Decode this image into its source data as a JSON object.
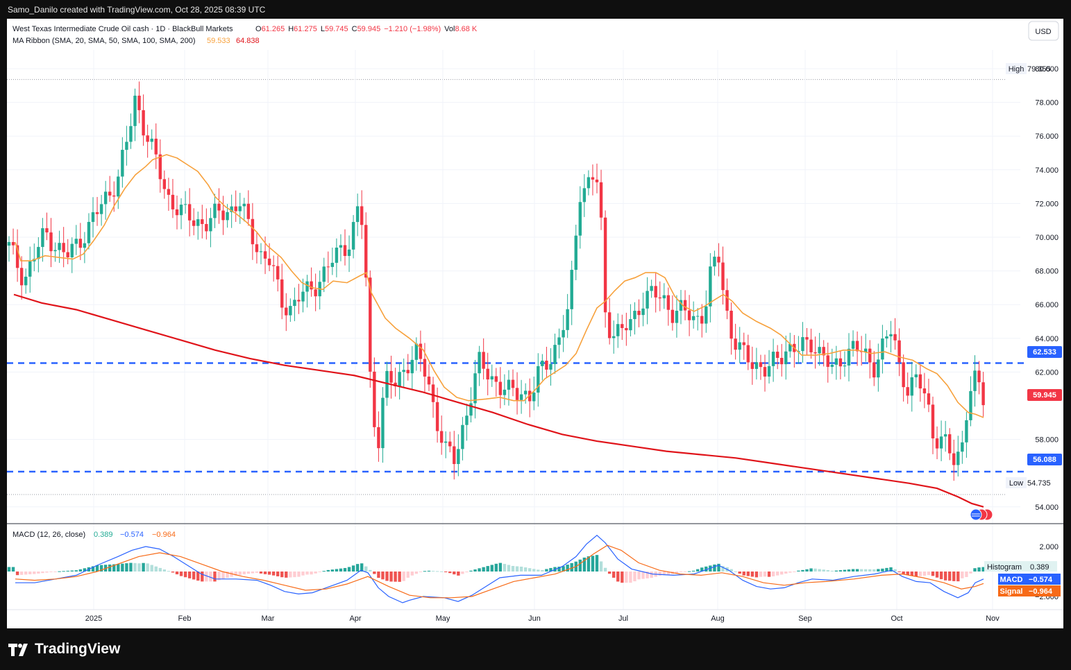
{
  "attribution": "Samo_Danilo created with TradingView.com, Oct 28, 2025 08:39 UTC",
  "brand": {
    "name": "TradingView",
    "icon": "tradingview-logo-icon"
  },
  "legend": {
    "symbol": "West Texas Intermediate Crude Oil cash · 1D · BlackBull Markets",
    "ohlc": [
      {
        "k": "O",
        "v": "61.265"
      },
      {
        "k": "H",
        "v": "61.275"
      },
      {
        "k": "L",
        "v": "59.745"
      },
      {
        "k": "C",
        "v": "59.945"
      }
    ],
    "change": "−1.210 (−1.98%)",
    "vol_label": "Vol",
    "vol_value": "8.68 K",
    "ma_label": "MA Ribbon (SMA, 20, SMA, 50, SMA, 100, SMA, 200)",
    "ma_values": [
      "59.533",
      "64.838"
    ],
    "macd_label": "MACD (12, 26, close)",
    "macd_values": [
      "0.389",
      "−0.574",
      "−0.964"
    ]
  },
  "currency": "USD",
  "colors": {
    "up": "#22ab94",
    "down": "#f23645",
    "sma20": "#f7a13c",
    "sma200": "#e0141a",
    "level": "#2962ff",
    "macd": "#2962ff",
    "signal": "#f76a17",
    "hist_pos": "#26a69a",
    "hist_neg": "#ef5350"
  },
  "chart_data": [
    {
      "type": "candlestick",
      "title": "West Texas Intermediate Crude Oil cash · 1D · BlackBull Markets",
      "x_ticks": [
        "2025",
        "Feb",
        "Mar",
        "Apr",
        "May",
        "Jun",
        "Jul",
        "Aug",
        "Sep",
        "Oct",
        "Nov"
      ],
      "y_ticks": [
        "80.000",
        "78.000",
        "76.000",
        "74.000",
        "72.000",
        "70.000",
        "68.000",
        "66.000",
        "64.000",
        "62.000",
        "58.000",
        "54.000"
      ],
      "ylim": [
        53.0,
        81.0
      ],
      "high": {
        "label": "High",
        "value": "79.355"
      },
      "low": {
        "label": "Low",
        "value": "54.735"
      },
      "last_price": "59.945",
      "levels": [
        "62.533",
        "56.088"
      ],
      "series": [
        {
          "name": "SMA 20",
          "points": [
            [
              12,
              69.7
            ],
            [
              20,
              68.6
            ],
            [
              35,
              68.6
            ],
            [
              55,
              68.9
            ],
            [
              75,
              68.8
            ],
            [
              95,
              68.7
            ],
            [
              110,
              69.0
            ],
            [
              125,
              69.8
            ],
            [
              140,
              70.7
            ],
            [
              155,
              71.9
            ],
            [
              170,
              72.9
            ],
            [
              185,
              73.7
            ],
            [
              200,
              74.2
            ],
            [
              210,
              74.6
            ],
            [
              230,
              74.9
            ],
            [
              245,
              74.7
            ],
            [
              260,
              74.3
            ],
            [
              275,
              73.9
            ],
            [
              290,
              73.1
            ],
            [
              300,
              72.4
            ],
            [
              315,
              71.8
            ],
            [
              330,
              71.4
            ],
            [
              345,
              70.9
            ],
            [
              360,
              70.3
            ],
            [
              375,
              69.5
            ],
            [
              395,
              68.8
            ],
            [
              410,
              68.0
            ],
            [
              425,
              67.3
            ],
            [
              440,
              67.0
            ],
            [
              455,
              66.9
            ],
            [
              470,
              67.4
            ],
            [
              490,
              67.3
            ],
            [
              508,
              67.7
            ],
            [
              518,
              67.9
            ],
            [
              525,
              66.7
            ],
            [
              545,
              65.2
            ],
            [
              560,
              64.6
            ],
            [
              580,
              64.0
            ],
            [
              600,
              63.3
            ],
            [
              615,
              62.1
            ],
            [
              630,
              61.1
            ],
            [
              648,
              60.5
            ],
            [
              665,
              60.3
            ],
            [
              690,
              60.4
            ],
            [
              710,
              60.5
            ],
            [
              730,
              60.3
            ],
            [
              745,
              60.3
            ],
            [
              760,
              60.9
            ],
            [
              775,
              61.6
            ],
            [
              790,
              62.0
            ],
            [
              805,
              62.4
            ],
            [
              820,
              63.1
            ],
            [
              835,
              64.5
            ],
            [
              850,
              65.8
            ],
            [
              862,
              66.2
            ],
            [
              875,
              66.8
            ],
            [
              890,
              67.4
            ],
            [
              905,
              67.6
            ],
            [
              920,
              67.9
            ],
            [
              935,
              67.9
            ],
            [
              948,
              67.6
            ],
            [
              962,
              66.5
            ],
            [
              975,
              65.9
            ],
            [
              990,
              65.6
            ],
            [
              1005,
              65.9
            ],
            [
              1020,
              66.3
            ],
            [
              1032,
              66.6
            ],
            [
              1045,
              66.2
            ],
            [
              1060,
              65.5
            ],
            [
              1080,
              65.0
            ],
            [
              1100,
              64.6
            ],
            [
              1115,
              64.2
            ],
            [
              1130,
              63.6
            ],
            [
              1145,
              63.0
            ],
            [
              1165,
              63.0
            ],
            [
              1185,
              63.1
            ],
            [
              1205,
              63.3
            ],
            [
              1225,
              63.3
            ],
            [
              1245,
              63.1
            ],
            [
              1265,
              63.2
            ],
            [
              1285,
              62.9
            ],
            [
              1305,
              62.7
            ],
            [
              1325,
              62.2
            ],
            [
              1340,
              61.9
            ],
            [
              1355,
              61.2
            ],
            [
              1370,
              60.2
            ],
            [
              1385,
              59.6
            ],
            [
              1395,
              59.5
            ],
            [
              1407,
              59.3
            ]
          ]
        },
        {
          "name": "SMA 200",
          "points": [
            [
              10,
              66.6
            ],
            [
              50,
              66.1
            ],
            [
              100,
              65.7
            ],
            [
              150,
              65.1
            ],
            [
              200,
              64.5
            ],
            [
              250,
              63.9
            ],
            [
              300,
              63.3
            ],
            [
              350,
              62.8
            ],
            [
              400,
              62.4
            ],
            [
              450,
              62.1
            ],
            [
              500,
              61.8
            ],
            [
              550,
              61.3
            ],
            [
              600,
              60.8
            ],
            [
              650,
              60.2
            ],
            [
              700,
              59.6
            ],
            [
              750,
              58.9
            ],
            [
              800,
              58.3
            ],
            [
              850,
              57.9
            ],
            [
              900,
              57.6
            ],
            [
              950,
              57.3
            ],
            [
              1000,
              57.1
            ],
            [
              1050,
              56.9
            ],
            [
              1100,
              56.6
            ],
            [
              1150,
              56.3
            ],
            [
              1200,
              56.0
            ],
            [
              1250,
              55.7
            ],
            [
              1300,
              55.4
            ],
            [
              1340,
              55.1
            ],
            [
              1370,
              54.6
            ],
            [
              1390,
              54.2
            ],
            [
              1407,
              54.0
            ]
          ]
        }
      ]
    },
    {
      "type": "line",
      "title": "MACD (12, 26, close)",
      "y_ticks": [
        "2.000",
        "−2.000"
      ],
      "x_ticks": [
        "2025",
        "Feb",
        "Mar",
        "Apr",
        "May",
        "Jun",
        "Jul",
        "Aug",
        "Sep",
        "Oct",
        "Nov"
      ],
      "tags": [
        {
          "label": "Histogram",
          "value": "0.389"
        },
        {
          "label": "MACD",
          "value": "−0.574"
        },
        {
          "label": "Signal",
          "value": "−0.964"
        }
      ],
      "series": [
        {
          "name": "MACD",
          "points": [
            [
              12,
              -0.9
            ],
            [
              40,
              -0.9
            ],
            [
              70,
              -0.6
            ],
            [
              100,
              -0.3
            ],
            [
              130,
              0.5
            ],
            [
              160,
              1.2
            ],
            [
              180,
              1.7
            ],
            [
              200,
              2.0
            ],
            [
              220,
              1.8
            ],
            [
              240,
              1.2
            ],
            [
              260,
              0.5
            ],
            [
              280,
              -0.2
            ],
            [
              300,
              -0.6
            ],
            [
              330,
              -0.6
            ],
            [
              360,
              -0.7
            ],
            [
              380,
              -1.1
            ],
            [
              400,
              -1.6
            ],
            [
              420,
              -1.8
            ],
            [
              440,
              -1.7
            ],
            [
              460,
              -1.3
            ],
            [
              490,
              -0.7
            ],
            [
              510,
              0.1
            ],
            [
              520,
              -0.1
            ],
            [
              535,
              -1.3
            ],
            [
              550,
              -2.0
            ],
            [
              570,
              -2.5
            ],
            [
              580,
              -2.3
            ],
            [
              600,
              -2.0
            ],
            [
              630,
              -2.1
            ],
            [
              650,
              -2.4
            ],
            [
              670,
              -1.9
            ],
            [
              690,
              -1.2
            ],
            [
              710,
              -0.5
            ],
            [
              740,
              -0.3
            ],
            [
              770,
              -0.3
            ],
            [
              800,
              0.4
            ],
            [
              820,
              1.2
            ],
            [
              835,
              2.2
            ],
            [
              850,
              2.9
            ],
            [
              862,
              2.3
            ],
            [
              880,
              1.0
            ],
            [
              900,
              0.2
            ],
            [
              930,
              -0.2
            ],
            [
              960,
              -0.3
            ],
            [
              990,
              -0.2
            ],
            [
              1010,
              0.2
            ],
            [
              1025,
              0.5
            ],
            [
              1040,
              0.1
            ],
            [
              1060,
              -0.7
            ],
            [
              1080,
              -1.2
            ],
            [
              1100,
              -1.4
            ],
            [
              1120,
              -1.3
            ],
            [
              1140,
              -0.9
            ],
            [
              1160,
              -0.6
            ],
            [
              1190,
              -0.7
            ],
            [
              1220,
              -0.4
            ],
            [
              1250,
              -0.2
            ],
            [
              1275,
              0.1
            ],
            [
              1290,
              -0.4
            ],
            [
              1310,
              -0.8
            ],
            [
              1330,
              -0.9
            ],
            [
              1350,
              -1.6
            ],
            [
              1370,
              -2.1
            ],
            [
              1385,
              -1.7
            ],
            [
              1395,
              -0.9
            ],
            [
              1407,
              -0.6
            ]
          ]
        },
        {
          "name": "Signal",
          "points": [
            [
              12,
              -0.6
            ],
            [
              40,
              -0.7
            ],
            [
              70,
              -0.6
            ],
            [
              100,
              -0.4
            ],
            [
              130,
              0.0
            ],
            [
              160,
              0.6
            ],
            [
              190,
              1.2
            ],
            [
              220,
              1.5
            ],
            [
              250,
              1.2
            ],
            [
              280,
              0.6
            ],
            [
              310,
              0.0
            ],
            [
              340,
              -0.4
            ],
            [
              370,
              -0.7
            ],
            [
              400,
              -1.1
            ],
            [
              430,
              -1.5
            ],
            [
              460,
              -1.4
            ],
            [
              490,
              -1.0
            ],
            [
              520,
              -0.4
            ],
            [
              550,
              -1.2
            ],
            [
              580,
              -1.9
            ],
            [
              610,
              -2.1
            ],
            [
              640,
              -2.1
            ],
            [
              670,
              -2.0
            ],
            [
              700,
              -1.4
            ],
            [
              730,
              -0.8
            ],
            [
              760,
              -0.5
            ],
            [
              790,
              -0.2
            ],
            [
              820,
              0.4
            ],
            [
              845,
              1.4
            ],
            [
              865,
              2.1
            ],
            [
              885,
              1.7
            ],
            [
              910,
              0.7
            ],
            [
              940,
              0.1
            ],
            [
              970,
              -0.2
            ],
            [
              1000,
              -0.3
            ],
            [
              1030,
              -0.1
            ],
            [
              1060,
              -0.4
            ],
            [
              1090,
              -0.9
            ],
            [
              1120,
              -1.1
            ],
            [
              1150,
              -0.9
            ],
            [
              1180,
              -0.8
            ],
            [
              1220,
              -0.6
            ],
            [
              1260,
              -0.3
            ],
            [
              1290,
              -0.2
            ],
            [
              1320,
              -0.5
            ],
            [
              1350,
              -0.9
            ],
            [
              1375,
              -1.4
            ],
            [
              1395,
              -1.2
            ],
            [
              1407,
              -0.96
            ]
          ]
        }
      ]
    }
  ]
}
